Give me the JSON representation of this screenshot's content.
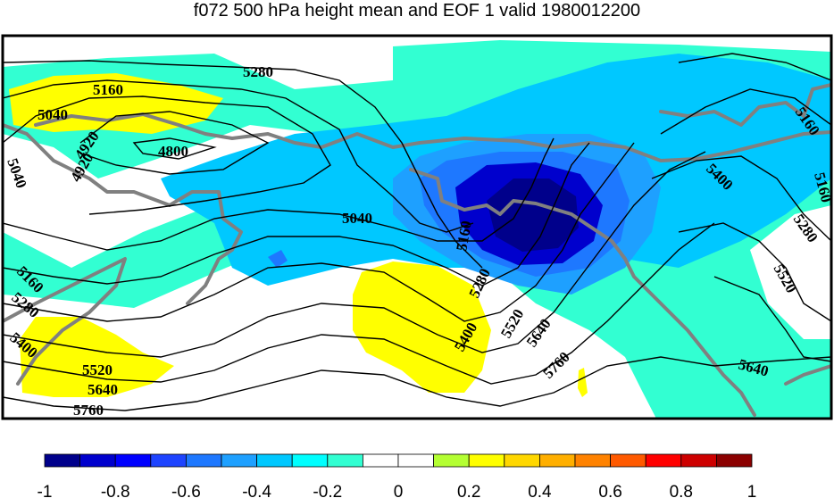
{
  "title": "f072 500 hPa height mean and EOF 1 valid 1980012200",
  "colorbar": {
    "colors": [
      "#00008b",
      "#0000cd",
      "#0000ff",
      "#1e44ff",
      "#1e78ff",
      "#1ea0ff",
      "#00c8ff",
      "#00ffff",
      "#32ffd2",
      "#ffffff",
      "#ffffff",
      "#b4ff32",
      "#ffff00",
      "#ffd700",
      "#ffaf00",
      "#ff8200",
      "#ff5a00",
      "#ff0000",
      "#cd0000",
      "#8b0000"
    ],
    "tick_labels": [
      "-1",
      "-0.8",
      "-0.6",
      "-0.4",
      "-0.2",
      "0",
      "0.2",
      "0.4",
      "0.6",
      "0.8",
      "1"
    ]
  },
  "field_colors": {
    "white": "#ffffff",
    "aqua": "#32ffd2",
    "sky": "#00c8ff",
    "blue": "#1ea0ff",
    "mid_blue": "#1e78ff",
    "strong_blue": "#0000cd",
    "dark_blue": "#00008b",
    "yellow": "#ffff00",
    "coastline": "#808080"
  },
  "contour_labels": [
    "5280",
    "5160",
    "5040",
    "4920",
    "4920",
    "4800",
    "5040",
    "5040",
    "5160",
    "5280",
    "5400",
    "5520",
    "5640",
    "5760",
    "5160",
    "5280",
    "5400",
    "5520",
    "5640",
    "5760",
    "5640",
    "5520",
    "5400",
    "5280",
    "5160",
    "5160"
  ]
}
